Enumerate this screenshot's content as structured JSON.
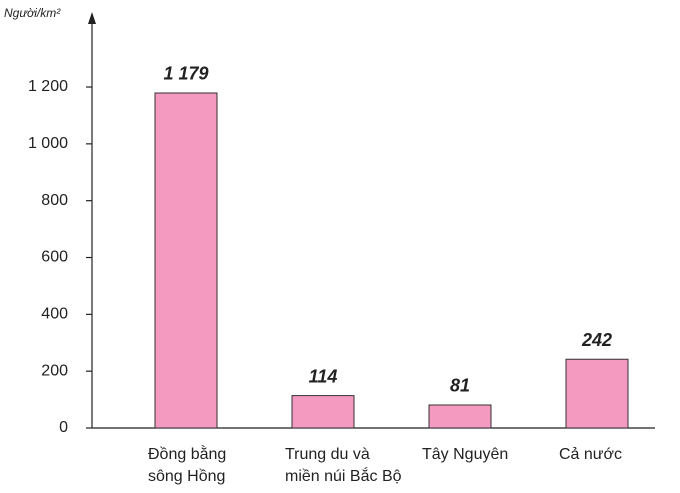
{
  "chart_data": {
    "type": "bar",
    "y_label": "Người/km²",
    "categories": [
      "Đồng bằng\nsông Hồng",
      "Trung du và\nmiền núi Bắc Bộ",
      "Tây Nguyên",
      "Cả nước"
    ],
    "values": [
      1179,
      114,
      81,
      242
    ],
    "value_labels": [
      "1 179",
      "114",
      "81",
      "242"
    ],
    "color": "#f49ac1",
    "ylim": [
      0,
      1400
    ],
    "yticks": [
      0,
      200,
      400,
      600,
      800,
      {
        "value": 1000,
        "label": "1 000"
      },
      {
        "value": 1200,
        "label": "1 200"
      }
    ]
  }
}
